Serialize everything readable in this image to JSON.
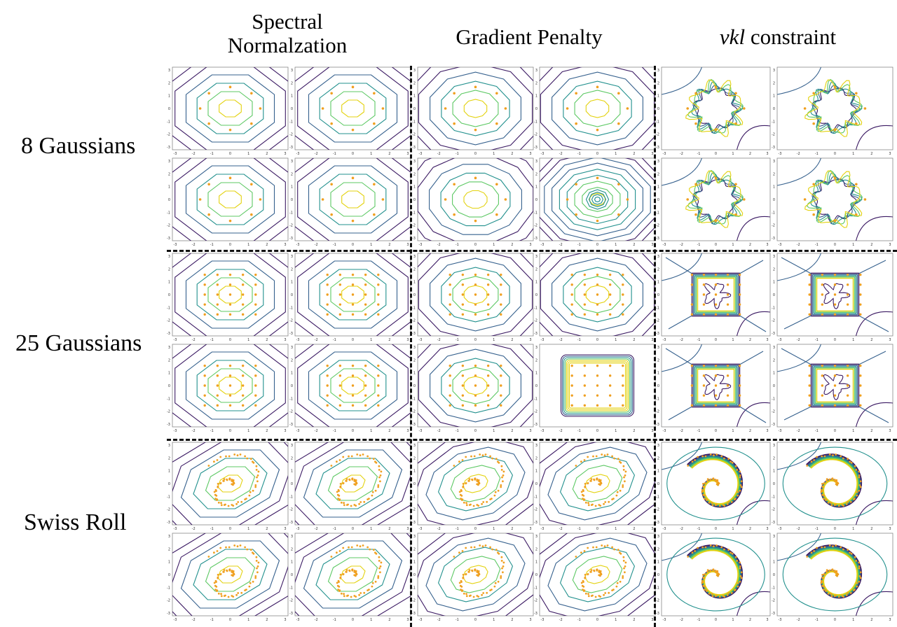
{
  "columns": [
    {
      "line1": "Spectral",
      "line2": "Normalzation"
    },
    {
      "line1": "Gradient Penalty"
    },
    {
      "italic": "vkl",
      "rest": " constraint"
    }
  ],
  "rows": [
    "8 Gaussians",
    "25 Gaussians",
    "Swiss Roll"
  ],
  "axis_ticks": [
    "-3",
    "-2",
    "-1",
    "0",
    "1",
    "2",
    "3"
  ],
  "colors": {
    "contour_dark": "#3b1a63",
    "contour_blue": "#35608d",
    "contour_teal": "#21908d",
    "contour_green": "#5cc863",
    "contour_yellow": "#e3d20f",
    "points": "#f0a020",
    "divider": "#111111",
    "panel_border": "#888888"
  }
}
